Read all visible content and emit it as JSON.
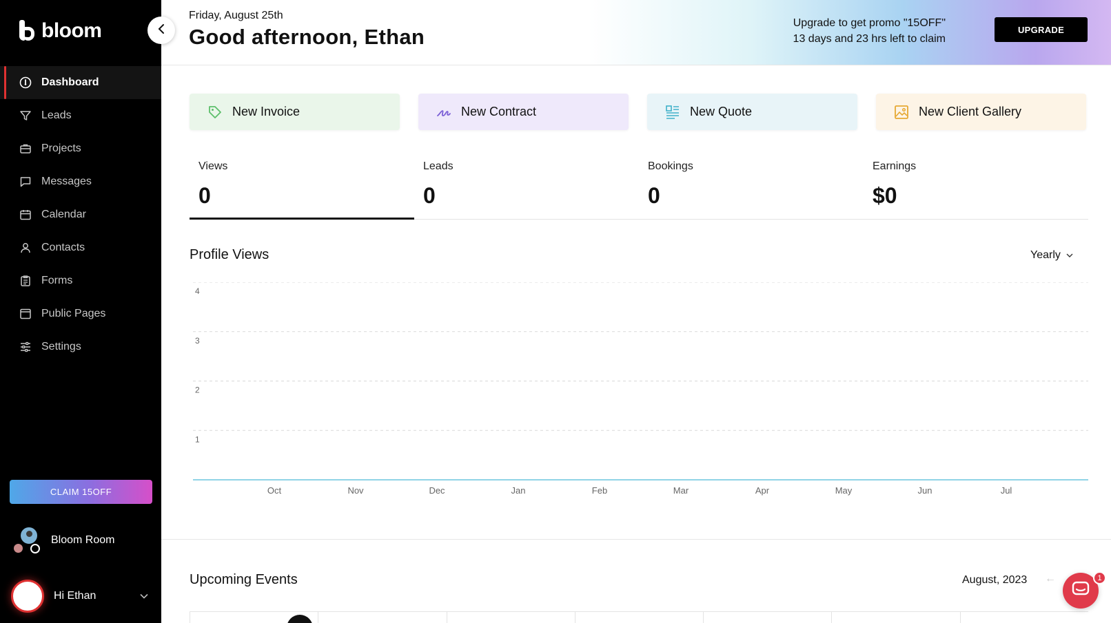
{
  "brand": {
    "name": "bloom"
  },
  "sidebar": {
    "items": [
      {
        "label": "Dashboard",
        "icon": "dashboard-icon"
      },
      {
        "label": "Leads",
        "icon": "funnel-icon"
      },
      {
        "label": "Projects",
        "icon": "briefcase-icon"
      },
      {
        "label": "Messages",
        "icon": "message-icon"
      },
      {
        "label": "Calendar",
        "icon": "calendar-icon"
      },
      {
        "label": "Contacts",
        "icon": "person-icon"
      },
      {
        "label": "Forms",
        "icon": "clipboard-icon"
      },
      {
        "label": "Public Pages",
        "icon": "page-icon"
      },
      {
        "label": "Settings",
        "icon": "sliders-icon"
      }
    ],
    "claim_label": "CLAIM 15OFF",
    "workspace_name": "Bloom Room",
    "user_greeting": "Hi Ethan"
  },
  "header": {
    "date": "Friday, August 25th",
    "greeting": "Good afternoon, Ethan",
    "promo_line1": "Upgrade to get promo \"15OFF\"",
    "promo_line2": "13 days and 23 hrs left to claim",
    "upgrade_label": "UPGRADE"
  },
  "quick_actions": [
    {
      "label": "New Invoice",
      "icon": "tag-icon",
      "bg": "#eaf6ea",
      "icon_color": "#5cbf6a"
    },
    {
      "label": "New Contract",
      "icon": "signature-icon",
      "bg": "#efe9fb",
      "icon_color": "#7b5fd6"
    },
    {
      "label": "New Quote",
      "icon": "quote-list-icon",
      "bg": "#e8f4f8",
      "icon_color": "#3fb0c9"
    },
    {
      "label": "New Client Gallery",
      "icon": "image-icon",
      "bg": "#fdf4e6",
      "icon_color": "#e6a832"
    }
  ],
  "stats": [
    {
      "label": "Views",
      "value": "0"
    },
    {
      "label": "Leads",
      "value": "0"
    },
    {
      "label": "Bookings",
      "value": "0"
    },
    {
      "label": "Earnings",
      "value": "$0"
    }
  ],
  "chart_section": {
    "title": "Profile Views",
    "period": "Yearly"
  },
  "chart_data": {
    "type": "area",
    "categories": [
      "Oct",
      "Nov",
      "Dec",
      "Jan",
      "Feb",
      "Mar",
      "Apr",
      "May",
      "Jun",
      "Jul"
    ],
    "y_ticks": [
      "4",
      "3",
      "2",
      "1"
    ],
    "ylim": [
      0,
      4
    ],
    "values": [
      0,
      0,
      0,
      0,
      0,
      0,
      0,
      0,
      0,
      0
    ],
    "grid": true,
    "line_color": "#8fd3e6"
  },
  "events": {
    "title": "Upcoming Events",
    "month": "August, 2023"
  },
  "chat": {
    "badge": "1"
  }
}
